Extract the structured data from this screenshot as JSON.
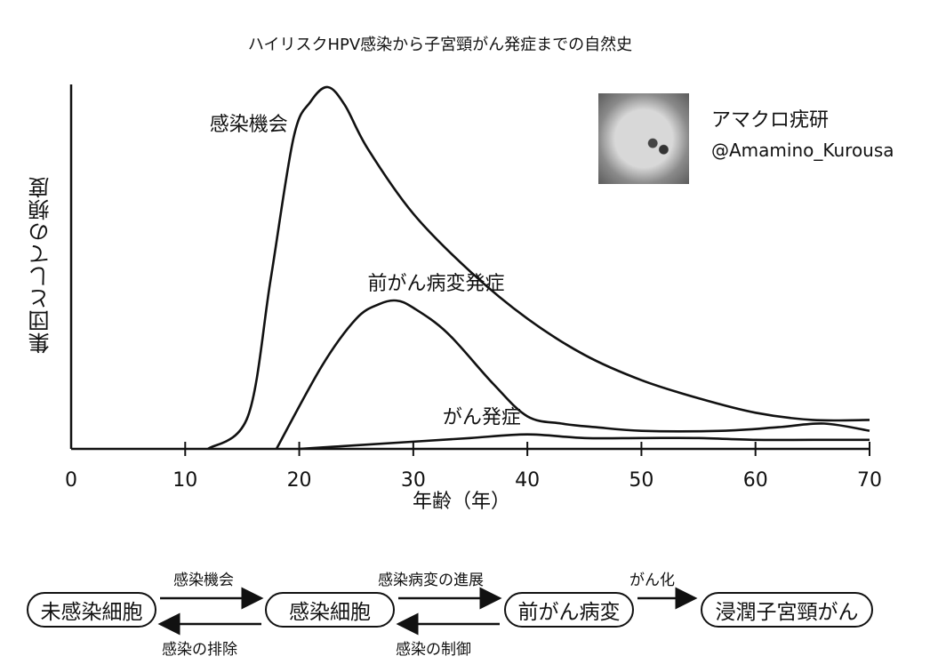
{
  "chart_data": {
    "type": "line",
    "title": "ハイリスクHPV感染から子宮頸がん発症までの自然史",
    "xlabel": "年齢（年）",
    "ylabel": "集団としての頻度",
    "xlim": [
      0,
      70
    ],
    "xticks": [
      0,
      10,
      20,
      30,
      40,
      50,
      60,
      70
    ],
    "ylim": [
      0,
      100
    ],
    "grid": false,
    "series": [
      {
        "name": "感染機会",
        "x": [
          12,
          15.5,
          17.5,
          19.5,
          21,
          22.5,
          24,
          26,
          30,
          35,
          40,
          45,
          50,
          55,
          60,
          65,
          70
        ],
        "y": [
          0,
          9,
          47,
          86,
          96,
          100,
          95,
          83,
          65,
          49,
          36,
          26,
          19,
          14,
          10,
          8,
          8
        ]
      },
      {
        "name": "前がん病変発症",
        "x": [
          18,
          22,
          25,
          27,
          28.5,
          30,
          33,
          37,
          40,
          43,
          46,
          50,
          57,
          62,
          66,
          70
        ],
        "y": [
          0,
          23,
          36,
          40,
          41,
          39,
          32,
          18,
          9,
          7,
          6,
          5,
          5,
          6,
          7,
          5
        ]
      },
      {
        "name": "がん発症",
        "x": [
          20,
          25,
          30,
          35,
          40,
          45,
          50,
          55,
          60,
          65,
          70
        ],
        "y": [
          0,
          1,
          2,
          3,
          4,
          3,
          3,
          3,
          2.5,
          2.5,
          2.5
        ]
      }
    ]
  },
  "watermark": {
    "name": "アマクロ疣研",
    "handle": "@Amamino_Kurousa"
  },
  "flow": {
    "nodes": [
      "未感染細胞",
      "感染細胞",
      "前がん病変",
      "浸潤子宮頸がん"
    ],
    "arrows": {
      "infection": "感染機会",
      "clearance": "感染の排除",
      "progression": "感染病変の進展",
      "control": "感染の制御",
      "malignant": "がん化"
    }
  }
}
